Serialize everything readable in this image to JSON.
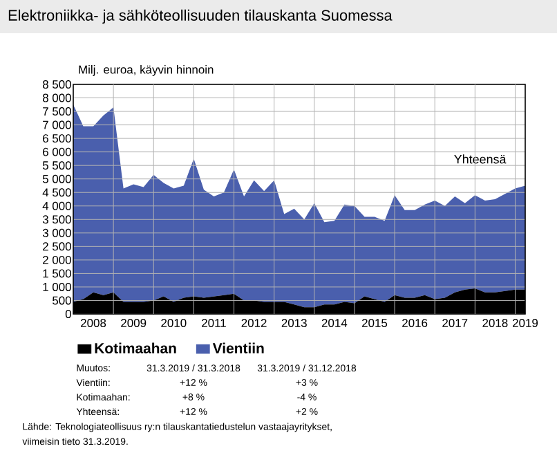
{
  "chart_data": {
    "type": "area",
    "stacked": true,
    "title": "Elektroniikka- ja sähköteollisuuden tilauskanta Suomessa",
    "ylabel": "Milj. euroa, käyvin hinnoin",
    "x": [
      2008,
      2008.25,
      2008.5,
      2008.75,
      2009,
      2009.25,
      2009.5,
      2009.75,
      2010,
      2010.25,
      2010.5,
      2010.75,
      2011,
      2011.25,
      2011.5,
      2011.75,
      2012,
      2012.25,
      2012.5,
      2012.75,
      2013,
      2013.25,
      2013.5,
      2013.75,
      2014,
      2014.25,
      2014.5,
      2014.75,
      2015,
      2015.25,
      2015.5,
      2015.75,
      2016,
      2016.25,
      2016.5,
      2016.75,
      2017,
      2017.25,
      2017.5,
      2017.75,
      2018,
      2018.25,
      2018.5,
      2018.75,
      2019,
      2019.25
    ],
    "series": [
      {
        "name": "Kotimaahan",
        "color": "#000000",
        "values": [
          450,
          550,
          800,
          700,
          800,
          450,
          450,
          450,
          500,
          650,
          450,
          600,
          650,
          600,
          650,
          700,
          750,
          500,
          500,
          450,
          450,
          450,
          350,
          250,
          250,
          350,
          350,
          450,
          400,
          650,
          550,
          450,
          700,
          600,
          600,
          700,
          550,
          600,
          800,
          900,
          950,
          800,
          800,
          850,
          900,
          900
        ]
      },
      {
        "name": "Vientiin",
        "color": "#4a5fad",
        "values": [
          7300,
          6400,
          6150,
          6650,
          6850,
          4200,
          4350,
          4250,
          4650,
          4200,
          4200,
          4150,
          5100,
          4000,
          3700,
          3800,
          4600,
          3850,
          4450,
          4100,
          4500,
          3250,
          3550,
          3250,
          3850,
          3050,
          3100,
          3600,
          3600,
          2950,
          3050,
          3000,
          3700,
          3250,
          3250,
          3350,
          3650,
          3400,
          3550,
          3200,
          3450,
          3400,
          3450,
          3600,
          3750,
          3850
        ]
      }
    ],
    "xlim": [
      2008,
      2019.25
    ],
    "xticks": [
      {
        "value": 2008.5,
        "label": "2008"
      },
      {
        "value": 2009.5,
        "label": "2009"
      },
      {
        "value": 2010.5,
        "label": "2010"
      },
      {
        "value": 2011.5,
        "label": "2011"
      },
      {
        "value": 2012.5,
        "label": "2012"
      },
      {
        "value": 2013.5,
        "label": "2013"
      },
      {
        "value": 2014.5,
        "label": "2014"
      },
      {
        "value": 2015.5,
        "label": "2015"
      },
      {
        "value": 2016.5,
        "label": "2016"
      },
      {
        "value": 2017.5,
        "label": "2017"
      },
      {
        "value": 2018.5,
        "label": "2018"
      },
      {
        "value": 2019.25,
        "label": "2019"
      },
      {
        "value": 2009,
        "label": null
      },
      {
        "value": 2010,
        "label": null
      },
      {
        "value": 2011,
        "label": null
      },
      {
        "value": 2012,
        "label": null
      },
      {
        "value": 2013,
        "label": null
      },
      {
        "value": 2014,
        "label": null
      },
      {
        "value": 2015,
        "label": null
      },
      {
        "value": 2016,
        "label": null
      },
      {
        "value": 2017,
        "label": null
      },
      {
        "value": 2018,
        "label": null
      },
      {
        "value": 2019,
        "label": null
      }
    ],
    "ylim": [
      0,
      8500
    ],
    "yticks": [
      0,
      500,
      {
        "value": 1000,
        "label": "1 000"
      },
      {
        "value": 1500,
        "label": "1 500"
      },
      {
        "value": 2000,
        "label": "2 000"
      },
      {
        "value": 2500,
        "label": "2 500"
      },
      {
        "value": 3000,
        "label": "3 000"
      },
      {
        "value": 3500,
        "label": "3 500"
      },
      {
        "value": 4000,
        "label": "4 000"
      },
      {
        "value": 4500,
        "label": "4 500"
      },
      {
        "value": 5000,
        "label": "5 000"
      },
      {
        "value": 5500,
        "label": "5 500"
      },
      {
        "value": 6000,
        "label": "6 000"
      },
      {
        "value": 6500,
        "label": "6 500"
      },
      {
        "value": 7000,
        "label": "7 000"
      },
      {
        "value": 7500,
        "label": "7 500"
      },
      {
        "value": 8000,
        "label": "8 000"
      },
      {
        "value": 8500,
        "label": "8 500"
      }
    ],
    "grid": true,
    "legend": "bottom",
    "annotations": [
      "Yhteensä",
      "Muutos:",
      "31.3.2019 / 31.3.2018",
      "31.3.2019 / 31.12.2018",
      "Vientiin:",
      "+12 %",
      "+3 %",
      "Kotimaahan:",
      "+8 %",
      "-4 %",
      "Yhteensä:",
      "+12 %",
      "+2 %",
      "Lähde: Teknologiateollisuus ry:n tilauskantatiedustelun vastaajayritykset,",
      "viimeisin tieto 31.3.2019."
    ]
  }
}
